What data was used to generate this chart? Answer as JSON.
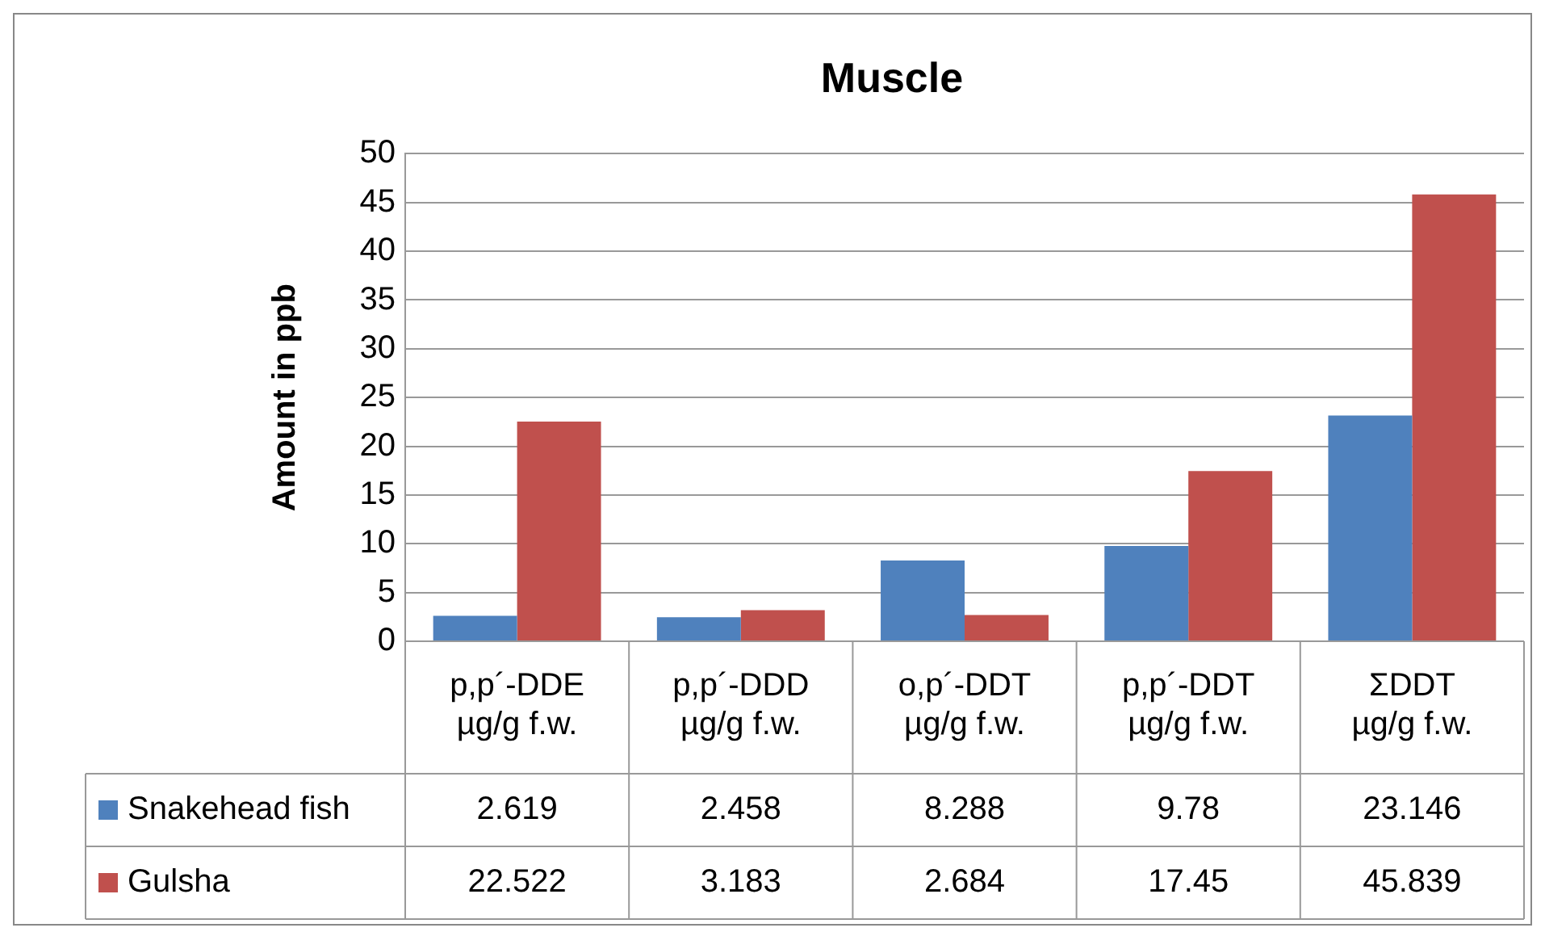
{
  "chart_data": {
    "type": "bar",
    "title": "Muscle",
    "ylabel": "Amount in ppb",
    "categories": [
      "p,p´-DDE\nµg/g f.w.",
      "p,p´-DDD\nµg/g f.w.",
      "o,p´-DDT\nµg/g f.w.",
      "p,p´-DDT\nµg/g f.w.",
      "ΣDDT\nµg/g f.w."
    ],
    "series": [
      {
        "name": "Snakehead fish",
        "color": "#4f81bd",
        "values": [
          2.619,
          2.458,
          8.288,
          9.78,
          23.146
        ]
      },
      {
        "name": "Gulsha",
        "color": "#c0504d",
        "values": [
          22.522,
          3.183,
          2.684,
          17.45,
          45.839
        ]
      }
    ],
    "ylim": [
      0,
      50
    ],
    "yticks": [
      0,
      5,
      10,
      15,
      20,
      25,
      30,
      35,
      40,
      45,
      50
    ],
    "grid": "y",
    "legend": "bottom left",
    "data_labels": true
  }
}
